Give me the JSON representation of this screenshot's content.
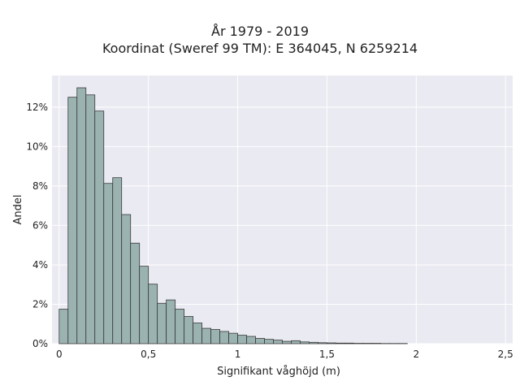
{
  "chart_data": {
    "type": "bar",
    "title": "År 1979 - 2019",
    "subtitle": "Koordinat (Sweref 99 TM): E 364045, N 6259214",
    "xlabel": "Signifikant våghöjd (m)",
    "ylabel": "Andel",
    "xlim": [
      -0.04,
      2.54
    ],
    "ylim": [
      0,
      0.136
    ],
    "x_ticks": [
      0,
      0.5,
      1,
      1.5,
      2,
      2.5
    ],
    "x_tick_labels": [
      "0",
      "0,5",
      "1",
      "1,5",
      "2",
      "2,5"
    ],
    "y_ticks": [
      0,
      0.02,
      0.04,
      0.06,
      0.08,
      0.1,
      0.12
    ],
    "y_tick_labels": [
      "0%",
      "2%",
      "4%",
      "6%",
      "8%",
      "10%",
      "12%"
    ],
    "bin_width": 0.05,
    "bin_starts": [
      0.0,
      0.05,
      0.1,
      0.15,
      0.2,
      0.25,
      0.3,
      0.35,
      0.4,
      0.45,
      0.5,
      0.55,
      0.6,
      0.65,
      0.7,
      0.75,
      0.8,
      0.85,
      0.9,
      0.95,
      1.0,
      1.05,
      1.1,
      1.15,
      1.2,
      1.25,
      1.3,
      1.35,
      1.4,
      1.45,
      1.5,
      1.55,
      1.6,
      1.65,
      1.7,
      1.75,
      1.8,
      1.85,
      1.9
    ],
    "values": [
      0.0175,
      0.125,
      0.1298,
      0.1262,
      0.118,
      0.0813,
      0.0842,
      0.0655,
      0.051,
      0.0393,
      0.0302,
      0.0205,
      0.0222,
      0.0175,
      0.0138,
      0.0105,
      0.0078,
      0.0072,
      0.0062,
      0.0053,
      0.0043,
      0.0037,
      0.0027,
      0.0022,
      0.0018,
      0.0012,
      0.0015,
      0.0009,
      0.0007,
      0.0005,
      0.0004,
      0.0003,
      0.0003,
      0.0002,
      0.0002,
      0.0002,
      0.0001,
      0.0001,
      0.0001
    ],
    "grid": true,
    "colors": {
      "bar_fill": "#9ab3b1",
      "bar_edge": "#3a3a3a",
      "plot_background": "#eaeaf2",
      "grid": "#ffffff"
    }
  }
}
